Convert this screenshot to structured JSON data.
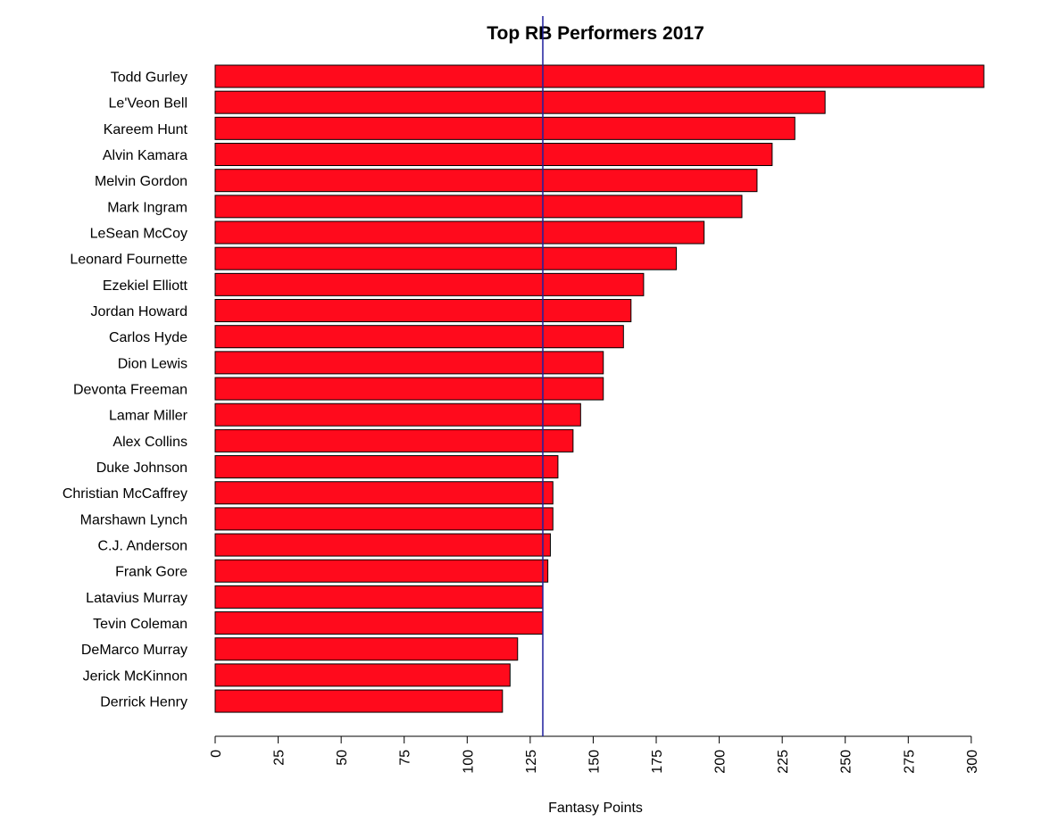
{
  "chart_data": {
    "type": "bar",
    "orientation": "horizontal",
    "title": "Top RB Performers 2017",
    "xlabel": "Fantasy Points",
    "ylabel": "",
    "xlim": [
      0,
      305
    ],
    "xticks": [
      0,
      25,
      50,
      75,
      100,
      125,
      150,
      175,
      200,
      225,
      250,
      275,
      300
    ],
    "tick_label_rotation": "vertical",
    "categories": [
      "Todd Gurley",
      "Le'Veon Bell",
      "Kareem Hunt",
      "Alvin Kamara",
      "Melvin Gordon",
      "Mark Ingram",
      "LeSean McCoy",
      "Leonard Fournette",
      "Ezekiel Elliott",
      "Jordan Howard",
      "Carlos Hyde",
      "Dion Lewis",
      "Devonta Freeman",
      "Lamar Miller",
      "Alex Collins",
      "Duke Johnson",
      "Christian McCaffrey",
      "Marshawn Lynch",
      "C.J. Anderson",
      "Frank Gore",
      "Latavius Murray",
      "Tevin Coleman",
      "DeMarco Murray",
      "Jerick McKinnon",
      "Derrick Henry"
    ],
    "values": [
      305,
      242,
      230,
      221,
      215,
      209,
      194,
      183,
      170,
      165,
      162,
      154,
      154,
      145,
      142,
      136,
      134,
      134,
      133,
      132,
      130,
      130,
      120,
      117,
      114
    ],
    "reference_line": {
      "orientation": "vertical",
      "value": 130
    },
    "grid": false,
    "legend": "none",
    "colors": {
      "bar_fill": "#ff0a1c",
      "bar_stroke": "#000000",
      "reference_line": "#1f1f9e",
      "axis": "#000000"
    }
  }
}
